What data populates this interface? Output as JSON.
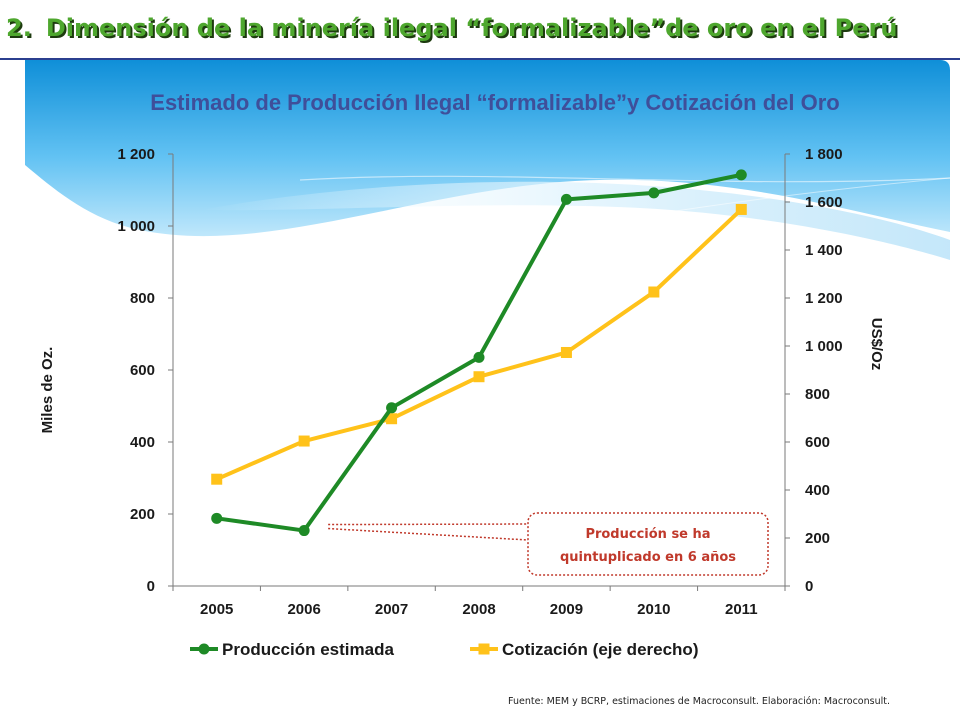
{
  "header": {
    "number": "2.",
    "title": "Dimensión de la minería ilegal “formalizable”de oro en el Perú"
  },
  "colors": {
    "production": "#1e8a26",
    "price": "#ffc21a",
    "title_green": "#4ea72e",
    "subtitle_blue": "#3f4f9a",
    "callout": "#c0392b",
    "rule": "#2b3f8f"
  },
  "chart_data": {
    "type": "line",
    "title": "Estimado de Producción Ilegal “formalizable”y Cotización del Oro",
    "categories": [
      "2005",
      "2006",
      "2007",
      "2008",
      "2009",
      "2010",
      "2011"
    ],
    "y_left": {
      "label": "Miles de Oz.",
      "range": [
        0,
        1200
      ],
      "ticks": [
        0,
        200,
        400,
        600,
        800,
        1000,
        1200
      ],
      "tick_labels": [
        "0",
        "200",
        "400",
        "600",
        "800",
        "1 000",
        "1 200"
      ]
    },
    "y_right": {
      "label": "US$/Oz",
      "range": [
        0,
        1800
      ],
      "ticks": [
        0,
        200,
        400,
        600,
        800,
        1000,
        1200,
        1400,
        1600,
        1800
      ],
      "tick_labels": [
        "0",
        "200",
        "400",
        "600",
        "800",
        "1 000",
        "1 200",
        "1 400",
        "1 600",
        "1 800"
      ]
    },
    "series": [
      {
        "name": "Producción estimada",
        "axis": "left",
        "marker": "circle",
        "color": "#1e8a26",
        "values": [
          188,
          154,
          495,
          635,
          1074,
          1092,
          1142
        ]
      },
      {
        "name": "Cotización (eje derecho)",
        "axis": "right",
        "marker": "square",
        "color": "#ffc21a",
        "values": [
          445,
          604,
          697,
          872,
          973,
          1225,
          1569
        ]
      }
    ],
    "legend_position": "bottom",
    "grid": false,
    "annotation": {
      "line1": "Producción se ha",
      "line2": "quintuplicado en 6 años"
    }
  },
  "footer": {
    "source": "Fuente: MEM y BCRP, estimaciones de Macroconsult. Elaboración: Macroconsult."
  }
}
